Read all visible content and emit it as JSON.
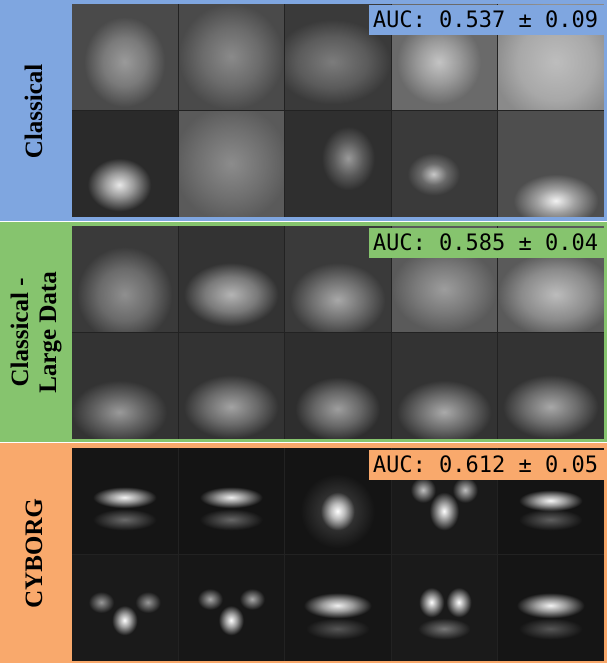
{
  "panels": [
    {
      "label": "Classical",
      "auc_text": "AUC: 0.537 ± 0.09",
      "bg_color": "#7fa6e0",
      "tiles": [
        "radial-gradient(ellipse 45% 50% at 50% 55%, #9a9a9a 0%, #7a7a7a 45%, #4a4a4a 85%), #444",
        "radial-gradient(ellipse 50% 50% at 50% 50%, #8a8a8a 0%, #6b6b6b 55%, #4a4a4a 100%), #4e4e4e",
        "radial-gradient(ellipse 55% 40% at 45% 55%, #7c7c7c 0%, #5b5b5b 60%, #3a3a3a 100%), #3e3e3e",
        "radial-gradient(ellipse 40% 40% at 45% 55%, #c4c4c4 0%, #9a9a9a 50%, #6a6a6a 100%), #707070",
        "radial-gradient(ellipse 60% 60% at 55% 55%, #bdbdbd 0%, #a8a8a8 60%, #8a8a8a 100%), #909090",
        "radial-gradient(ellipse 30% 25% at 45% 70%, #e8e8e8 0%, #9a9a9a 45%, #2a2a2a 100%), #1a1a1a",
        "radial-gradient(ellipse 55% 55% at 50% 50%, #8c8c8c 0%, #6f6f6f 60%, #5a5a5a 100%), #5c5c5c",
        "radial-gradient(ellipse 25% 30% at 60% 45%, #9a9a9a 0%, #5a5a5a 55%, #2f2f2f 100%), #2c2c2c",
        "radial-gradient(ellipse 25% 20% at 40% 60%, #c8c8c8 0%, #6a6a6a 50%, #3a3a3a 100%), #444",
        "radial-gradient(ellipse 40% 25% at 55% 85%, #f2f2f2 0%, #a0a0a0 45%, #4e4e4e 100%), #4a4a4a"
      ]
    },
    {
      "label": "Classical -\nLarge Data",
      "auc_text": "AUC: 0.585 ± 0.04",
      "bg_color": "#86c46e",
      "tiles": [
        "radial-gradient(ellipse 45% 45% at 50% 65%, #8f8f8f 0%, #6a6a6a 55%, #3a3a3a 100%), #333",
        "radial-gradient(ellipse 45% 30% at 50% 65%, #b4b4b4 0%, #7a7a7a 55%, #333 100%), #2e2e2e",
        "radial-gradient(ellipse 45% 35% at 50% 70%, #a8a8a8 0%, #6e6e6e 55%, #3a3a3a 100%), #333",
        "radial-gradient(ellipse 50% 40% at 50% 60%, #9d9d9d 0%, #7a7a7a 55%, #5a5a5a 100%), #555",
        "radial-gradient(ellipse 55% 40% at 55% 65%, #bcbcbc 0%, #8a8a8a 60%, #5a5a5a 100%), #666",
        "radial-gradient(ellipse 45% 30% at 45% 75%, #9a9a9a 0%, #606060 55%, #333 100%), #2d2d2d",
        "radial-gradient(ellipse 45% 30% at 50% 70%, #a3a3a3 0%, #6a6a6a 55%, #333 100%), #2e2e2e",
        "radial-gradient(ellipse 40% 30% at 50% 72%, #9e9e9e 0%, #666 55%, #2e2e2e 100%), #2a2a2a",
        "radial-gradient(ellipse 45% 30% at 50% 75%, #aaaaaa 0%, #6a6a6a 55%, #333 100%), #2e2e2e",
        "radial-gradient(ellipse 45% 30% at 50% 70%, #a8a8a8 0%, #6c6c6c 55%, #333 100%), #2e2e2e"
      ]
    },
    {
      "label": "CYBORG",
      "auc_text": "AUC: 0.612 ± 0.05",
      "bg_color": "#f9a96c",
      "tiles": [
        "radial-gradient(ellipse 30% 10% at 50% 47%, #f4f4f4 0%, #9a9a9a 45%, rgba(0,0,0,0) 100%), radial-gradient(ellipse 30% 10% at 50% 68%, #6a6a6a 0%, rgba(0,0,0,0) 100%), #151515",
        "radial-gradient(ellipse 30% 10% at 50% 47%, #f0f0f0 0%, #949494 45%, rgba(0,0,0,0) 100%), radial-gradient(ellipse 30% 10% at 50% 68%, #666 0%, rgba(0,0,0,0) 100%), #141414",
        "radial-gradient(ellipse 16% 18% at 50% 60%, #ffffff 0%, #bdbdbd 40%, rgba(0,0,0,0) 100%), radial-gradient(ellipse 35% 35% at 50% 60%, #4a4a4a 0%, rgba(0,0,0,0) 100%), #141414",
        "radial-gradient(ellipse 14% 18% at 50% 60%, #ffffff 0%, #9a9a9a 45%, rgba(0,0,0,0) 100%), radial-gradient(ellipse 12% 12% at 30% 40%, #c0c0c0 0%, rgba(0,0,0,0) 100%), radial-gradient(ellipse 12% 12% at 70% 40%, #c0c0c0 0%, rgba(0,0,0,0) 100%), #1a1a1a",
        "radial-gradient(ellipse 30% 10% at 50% 50%, #f7f7f7 0%, #9c9c9c 45%, rgba(0,0,0,0) 100%), radial-gradient(ellipse 30% 10% at 50% 68%, #5e5e5e 0%, rgba(0,0,0,0) 100%), #141414",
        "radial-gradient(ellipse 12% 14% at 50% 62%, #ffffff 0%, #a0a0a0 45%, rgba(0,0,0,0) 100%), radial-gradient(ellipse 12% 10% at 28% 45%, #999 0%, rgba(0,0,0,0) 100%), radial-gradient(ellipse 12% 10% at 72% 45%, #999 0%, rgba(0,0,0,0) 100%), #1a1a1a",
        "radial-gradient(ellipse 12% 14% at 50% 62%, #ffffff 0%, #a0a0a0 45%, rgba(0,0,0,0) 100%), radial-gradient(ellipse 12% 10% at 30% 42%, #aaa 0%, rgba(0,0,0,0) 100%), radial-gradient(ellipse 12% 10% at 70% 42%, #aaa 0%, rgba(0,0,0,0) 100%), #171717",
        "radial-gradient(ellipse 32% 12% at 50% 48%, #f0f0f0 0%, #9c9c9c 45%, rgba(0,0,0,0) 100%), radial-gradient(ellipse 30% 10% at 50% 70%, #555 0%, rgba(0,0,0,0) 100%), #161616",
        "radial-gradient(ellipse 12% 14% at 38% 45%, #ffffff 0%, #9a9a9a 45%, rgba(0,0,0,0) 100%), radial-gradient(ellipse 12% 14% at 64% 45%, #ffffff 0%, #9a9a9a 45%, rgba(0,0,0,0) 100%), radial-gradient(ellipse 25% 10% at 50% 70%, #777 0%, rgba(0,0,0,0) 100%), #1a1a1a",
        "radial-gradient(ellipse 32% 12% at 50% 48%, #f4f4f4 0%, #9a9a9a 45%, rgba(0,0,0,0) 100%), radial-gradient(ellipse 30% 10% at 50% 70%, #555 0%, rgba(0,0,0,0) 100%), #151515"
      ]
    }
  ]
}
